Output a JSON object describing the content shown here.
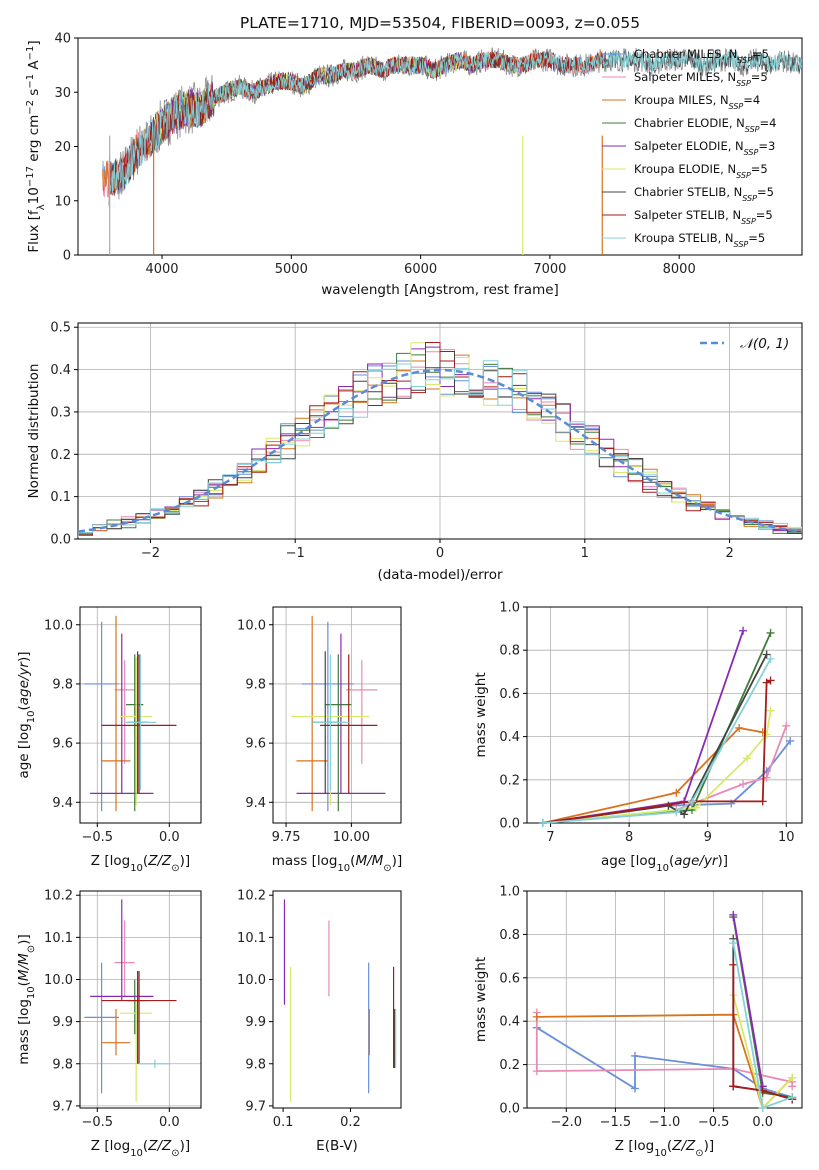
{
  "figure": {
    "title": "PLATE=1710, MJD=53504, FIBERID=0093, z=0.055"
  },
  "colors": {
    "Chabrier MILES": "#6a8fdb",
    "Salpeter MILES": "#e98ab6",
    "Kroupa MILES": "#d8731f",
    "Chabrier ELODIE": "#3f7d3a",
    "Salpeter ELODIE": "#8a2ab2",
    "Kroupa ELODIE": "#d8e86a",
    "Chabrier STELIB": "#444444",
    "Salpeter STELIB": "#a61b1b",
    "Kroupa STELIB": "#86d1d8"
  },
  "chart_data": [
    {
      "id": "spectrum",
      "type": "line",
      "title": "PLATE=1710, MJD=53504, FIBERID=0093, z=0.055",
      "xlabel": "wavelength [Angstrom, rest frame]",
      "ylabel": "Flux [f_λ 10^-17 erg cm^-2 s^-1 A^-1]",
      "xlim": [
        3350,
        8950
      ],
      "ylim": [
        0,
        40
      ],
      "xticks": [
        4000,
        5000,
        6000,
        7000,
        8000
      ],
      "yticks": [
        0,
        10,
        20,
        30,
        40
      ],
      "grid": false,
      "legend_position": "top-right",
      "observed": {
        "name": "data",
        "x": [
          3600,
          3700,
          3800,
          3900,
          4000,
          4100,
          4200,
          4300,
          4400,
          4500,
          4600,
          4700,
          4800,
          4900,
          5000,
          5100,
          5200,
          5300,
          5400,
          5500,
          5600,
          5700,
          5800,
          5900,
          6000,
          6100,
          6200,
          6300,
          6400,
          6500,
          6600,
          6700,
          6800,
          6900,
          7000,
          7100,
          7200,
          7300,
          7400,
          7500,
          7600,
          7700,
          7800,
          7900,
          8000,
          8100,
          8200,
          8300,
          8400,
          8500,
          8600,
          8700,
          8800,
          8900
        ],
        "y": [
          14,
          15,
          19,
          21,
          24,
          26,
          27,
          27,
          29,
          30,
          31,
          30,
          31,
          32,
          32,
          31,
          33,
          33,
          34,
          34,
          35,
          34,
          35,
          35,
          35,
          34,
          35,
          36,
          35,
          36,
          36,
          35,
          35,
          36,
          36,
          35,
          35,
          35,
          36,
          36,
          36,
          36,
          35,
          36,
          36,
          36,
          35,
          36,
          36,
          35,
          36,
          35,
          36,
          35
        ]
      },
      "models": [
        {
          "name": "Chabrier MILES",
          "label": "Chabrier MILES, N",
          "sub": "SSP",
          "suffix": "=5",
          "color": "#6a8fdb",
          "x_start": 3540,
          "x_end": 7410
        },
        {
          "name": "Salpeter MILES",
          "label": "Salpeter MILES, N",
          "sub": "SSP",
          "suffix": "=5",
          "color": "#e98ab6",
          "x_start": 3540,
          "x_end": 7410
        },
        {
          "name": "Kroupa MILES",
          "label": "Kroupa MILES, N",
          "sub": "SSP",
          "suffix": "=4",
          "color": "#d8731f",
          "x_start": 3540,
          "x_end": 7410
        },
        {
          "name": "Chabrier ELODIE",
          "label": "Chabrier ELODIE, N",
          "sub": "SSP",
          "suffix": "=4",
          "color": "#3f7d3a",
          "x_start": 3900,
          "x_end": 6800
        },
        {
          "name": "Salpeter ELODIE",
          "label": "Salpeter ELODIE, N",
          "sub": "SSP",
          "suffix": "=3",
          "color": "#8a2ab2",
          "x_start": 3900,
          "x_end": 6800
        },
        {
          "name": "Kroupa ELODIE",
          "label": "Kroupa ELODIE, N",
          "sub": "SSP",
          "suffix": "=5",
          "color": "#d8e86a",
          "x_start": 3900,
          "x_end": 6800
        },
        {
          "name": "Chabrier STELIB",
          "label": "Chabrier STELIB, N",
          "sub": "SSP",
          "suffix": "=5",
          "color": "#444444",
          "x_start": 3600,
          "x_end": 8950
        },
        {
          "name": "Salpeter STELIB",
          "label": "Salpeter STELIB, N",
          "sub": "SSP",
          "suffix": "=5",
          "color": "#a61b1b",
          "x_start": 3600,
          "x_end": 7410
        },
        {
          "name": "Kroupa STELIB",
          "label": "Kroupa STELIB, N",
          "sub": "SSP",
          "suffix": "=5",
          "color": "#86d1d8",
          "x_start": 3600,
          "x_end": 8950
        }
      ]
    },
    {
      "id": "residuals",
      "type": "line",
      "xlabel": "(data-model)/error",
      "ylabel": "Normed distribution",
      "xlim": [
        -2.5,
        2.5
      ],
      "ylim": [
        0,
        0.51
      ],
      "xticks": [
        -2,
        -1,
        0,
        1,
        2
      ],
      "yticks": [
        0.0,
        0.1,
        0.2,
        0.3,
        0.4,
        0.5
      ],
      "grid": true,
      "legend_position": "top-right",
      "reference": {
        "name": "N(0,1)",
        "mean": 0,
        "sigma": 1,
        "style": "dashed"
      },
      "bin_width": 0.1
    },
    {
      "id": "age_vs_Z",
      "type": "scatter",
      "xlabel": "Z [log10(Z/Z⊙)]",
      "ylabel": "age [log10(age/yr)]",
      "xlim": [
        -0.62,
        0.22
      ],
      "ylim": [
        9.33,
        10.06
      ],
      "xticks": [
        -0.5,
        0.0
      ],
      "yticks": [
        9.4,
        9.6,
        9.8,
        10.0
      ],
      "grid": true,
      "points": [
        {
          "model": "Chabrier MILES",
          "x": -0.47,
          "y": 9.8,
          "xerr": 0.12,
          "yerr": [
            0.43,
            0.21
          ]
        },
        {
          "model": "Salpeter MILES",
          "x": -0.31,
          "y": 9.78,
          "xerr": 0.07,
          "yerr": [
            0.25,
            0.1
          ]
        },
        {
          "model": "Kroupa MILES",
          "x": -0.37,
          "y": 9.54,
          "xerr": 0.1,
          "yerr": [
            0.17,
            0.49
          ]
        },
        {
          "model": "Chabrier ELODIE",
          "x": -0.24,
          "y": 9.73,
          "xerr": 0.06,
          "yerr": [
            0.36,
            0.17
          ]
        },
        {
          "model": "Salpeter ELODIE",
          "x": -0.33,
          "y": 9.43,
          "xerr": 0.22,
          "yerr": [
            0.0,
            0.54
          ]
        },
        {
          "model": "Kroupa ELODIE",
          "x": -0.23,
          "y": 9.69,
          "xerr": 0.11,
          "yerr": [
            0.3,
            0.2
          ]
        },
        {
          "model": "Chabrier STELIB",
          "x": -0.22,
          "y": 9.67,
          "xerr": 0.07,
          "yerr": [
            0.24,
            0.24
          ]
        },
        {
          "model": "Salpeter STELIB",
          "x": -0.21,
          "y": 9.66,
          "xerr": 0.26,
          "yerr": [
            0.23,
            0.24
          ]
        },
        {
          "model": "Kroupa STELIB",
          "x": -0.2,
          "y": 9.67,
          "xerr": 0.11,
          "yerr": [
            0.23,
            0.23
          ]
        }
      ]
    },
    {
      "id": "age_vs_mass",
      "type": "scatter",
      "xlabel": "mass [log10(M/M⊙)]",
      "ylabel": "",
      "xlim": [
        9.7,
        10.19
      ],
      "ylim": [
        9.33,
        10.06
      ],
      "xticks": [
        9.75,
        10.0
      ],
      "yticks": [
        9.4,
        9.6,
        9.8,
        10.0
      ],
      "grid": true,
      "points": [
        {
          "model": "Chabrier MILES",
          "x": 9.91,
          "y": 9.8,
          "xerr": 0.1,
          "yerr": [
            0.43,
            0.21
          ]
        },
        {
          "model": "Salpeter MILES",
          "x": 10.04,
          "y": 9.78,
          "xerr": 0.06,
          "yerr": [
            0.25,
            0.1
          ]
        },
        {
          "model": "Kroupa MILES",
          "x": 9.85,
          "y": 9.54,
          "xerr": 0.06,
          "yerr": [
            0.17,
            0.49
          ]
        },
        {
          "model": "Chabrier ELODIE",
          "x": 9.95,
          "y": 9.73,
          "xerr": 0.05,
          "yerr": [
            0.36,
            0.17
          ]
        },
        {
          "model": "Salpeter ELODIE",
          "x": 9.96,
          "y": 9.43,
          "xerr": 0.17,
          "yerr": [
            0.0,
            0.54
          ]
        },
        {
          "model": "Kroupa ELODIE",
          "x": 9.92,
          "y": 9.69,
          "xerr": 0.15,
          "yerr": [
            0.3,
            0.2
          ]
        },
        {
          "model": "Chabrier STELIB",
          "x": 9.9,
          "y": 9.67,
          "xerr": 0.05,
          "yerr": [
            0.24,
            0.24
          ]
        },
        {
          "model": "Salpeter STELIB",
          "x": 9.99,
          "y": 9.66,
          "xerr": 0.11,
          "yerr": [
            0.23,
            0.24
          ]
        },
        {
          "model": "Kroupa STELIB",
          "x": 9.92,
          "y": 9.67,
          "xerr": 0.07,
          "yerr": [
            0.23,
            0.23
          ]
        }
      ]
    },
    {
      "id": "weight_vs_age",
      "type": "line",
      "xlabel": "age [log10(age/yr)]",
      "ylabel": "mass weight",
      "xlim": [
        6.7,
        10.2
      ],
      "ylim": [
        0,
        1.0
      ],
      "xticks": [
        7,
        8,
        9,
        10
      ],
      "yticks": [
        0.0,
        0.2,
        0.4,
        0.6,
        0.8,
        1.0
      ],
      "grid": true,
      "series": [
        {
          "name": "Chabrier MILES",
          "x": [
            6.9,
            8.5,
            9.3,
            9.75,
            10.05
          ],
          "y": [
            0.0,
            0.08,
            0.09,
            0.24,
            0.38
          ]
        },
        {
          "name": "Salpeter MILES",
          "x": [
            6.9,
            8.6,
            9.45,
            9.75,
            10.0
          ],
          "y": [
            0.0,
            0.06,
            0.18,
            0.21,
            0.45
          ]
        },
        {
          "name": "Kroupa MILES",
          "x": [
            6.9,
            8.6,
            9.4,
            9.7
          ],
          "y": [
            0.0,
            0.14,
            0.44,
            0.42
          ]
        },
        {
          "name": "Chabrier ELODIE",
          "x": [
            6.9,
            8.8,
            9.8
          ],
          "y": [
            0.0,
            0.06,
            0.88
          ]
        },
        {
          "name": "Salpeter ELODIE",
          "x": [
            6.9,
            8.7,
            9.45
          ],
          "y": [
            0.0,
            0.1,
            0.89
          ]
        },
        {
          "name": "Kroupa ELODIE",
          "x": [
            6.9,
            8.85,
            9.5,
            9.75,
            9.8
          ],
          "y": [
            0.0,
            0.07,
            0.3,
            0.41,
            0.52
          ]
        },
        {
          "name": "Chabrier STELIB",
          "x": [
            6.9,
            8.5,
            8.7,
            9.75
          ],
          "y": [
            0.0,
            0.08,
            0.04,
            0.78
          ]
        },
        {
          "name": "Salpeter STELIB",
          "x": [
            6.9,
            8.8,
            9.7,
            9.75,
            9.8
          ],
          "y": [
            0.0,
            0.1,
            0.1,
            0.65,
            0.66
          ]
        },
        {
          "name": "Kroupa STELIB",
          "x": [
            6.9,
            8.6,
            8.8,
            9.8
          ],
          "y": [
            0.0,
            0.05,
            0.1,
            0.76
          ]
        }
      ]
    },
    {
      "id": "mass_vs_Z",
      "type": "scatter",
      "xlabel": "Z [log10(Z/Z⊙)]",
      "ylabel": "mass [log10(M/M⊙)]",
      "xlim": [
        -0.62,
        0.22
      ],
      "ylim": [
        9.695,
        10.21
      ],
      "xticks": [
        -0.5,
        0.0
      ],
      "yticks": [
        9.7,
        9.8,
        9.9,
        10.0,
        10.1,
        10.2
      ],
      "grid": true,
      "points": [
        {
          "model": "Chabrier MILES",
          "x": -0.47,
          "y": 9.91,
          "xerr": 0.12,
          "yerr": [
            0.18,
            0.13
          ]
        },
        {
          "model": "Salpeter MILES",
          "x": -0.31,
          "y": 10.04,
          "xerr": 0.07,
          "yerr": [
            0.08,
            0.1
          ]
        },
        {
          "model": "Kroupa MILES",
          "x": -0.37,
          "y": 9.85,
          "xerr": 0.1,
          "yerr": [
            0.03,
            0.08
          ]
        },
        {
          "model": "Chabrier ELODIE",
          "x": -0.24,
          "y": 9.95,
          "xerr": 0.06,
          "yerr": [
            0.08,
            0.05
          ]
        },
        {
          "model": "Salpeter ELODIE",
          "x": -0.33,
          "y": 9.96,
          "xerr": 0.22,
          "yerr": [
            0.01,
            0.23
          ]
        },
        {
          "model": "Kroupa ELODIE",
          "x": -0.23,
          "y": 9.92,
          "xerr": 0.11,
          "yerr": [
            0.21,
            0.03
          ]
        },
        {
          "model": "Chabrier STELIB",
          "x": -0.22,
          "y": 9.95,
          "xerr": 0.07,
          "yerr": [
            0.15,
            0.07
          ]
        },
        {
          "model": "Salpeter STELIB",
          "x": -0.21,
          "y": 9.95,
          "xerr": 0.26,
          "yerr": [
            0.15,
            0.07
          ]
        },
        {
          "model": "Kroupa STELIB",
          "x": -0.1,
          "y": 9.8,
          "xerr": 0.11,
          "yerr": [
            0.01,
            0.01
          ]
        }
      ]
    },
    {
      "id": "mass_vs_ebv",
      "type": "scatter",
      "xlabel": "E(B-V)",
      "ylabel": "",
      "xlim": [
        0.085,
        0.275
      ],
      "ylim": [
        9.695,
        10.21
      ],
      "xticks": [
        0.1,
        0.2
      ],
      "yticks": [
        9.7,
        9.8,
        9.9,
        10.0,
        10.1,
        10.2
      ],
      "grid": false,
      "points": [
        {
          "model": "Chabrier MILES",
          "x": 0.227,
          "y": 9.91,
          "yerr": [
            0.18,
            0.13
          ]
        },
        {
          "model": "Salpeter MILES",
          "x": 0.168,
          "y": 10.04,
          "yerr": [
            0.08,
            0.1
          ]
        },
        {
          "model": "Kroupa MILES",
          "x": 0.228,
          "y": 9.85,
          "yerr": [
            0.03,
            0.08
          ]
        },
        {
          "model": "Chabrier ELODIE",
          "x": 0.265,
          "y": 9.86,
          "yerr": [
            0.07,
            0.07
          ]
        },
        {
          "model": "Salpeter ELODIE",
          "x": 0.102,
          "y": 10.07,
          "yerr": [
            0.13,
            0.12
          ]
        },
        {
          "model": "Kroupa ELODIE",
          "x": 0.111,
          "y": 9.87,
          "yerr": [
            0.16,
            0.16
          ]
        },
        {
          "model": "Chabrier STELIB",
          "x": 0.266,
          "y": 9.86,
          "yerr": [
            0.07,
            0.07
          ]
        },
        {
          "model": "Salpeter STELIB",
          "x": 0.264,
          "y": 9.92,
          "yerr": [
            0.13,
            0.11
          ]
        },
        {
          "model": "Kroupa STELIB",
          "x": 0.267,
          "y": 9.86,
          "yerr": [
            0.07,
            0.07
          ]
        }
      ]
    },
    {
      "id": "weight_vs_Z",
      "type": "line",
      "xlabel": "Z [log10(Z/Z⊙)]",
      "ylabel": "mass weight",
      "xlim": [
        -2.4,
        0.4
      ],
      "ylim": [
        0,
        1.0
      ],
      "xticks": [
        -2.0,
        -1.5,
        -1.0,
        -0.5,
        0.0
      ],
      "yticks": [
        0.0,
        0.2,
        0.4,
        0.6,
        0.8,
        1.0
      ],
      "grid": true,
      "series": [
        {
          "name": "Chabrier MILES",
          "x": [
            -2.3,
            -1.3,
            -1.3,
            -0.3,
            0.0,
            0.3
          ],
          "y": [
            0.37,
            0.09,
            0.24,
            0.18,
            0.09,
            0.05
          ]
        },
        {
          "name": "Salpeter MILES",
          "x": [
            -2.3,
            -2.3,
            -0.3,
            0.3,
            0.3
          ],
          "y": [
            0.44,
            0.17,
            0.18,
            0.12,
            0.1
          ]
        },
        {
          "name": "Kroupa MILES",
          "x": [
            -2.3,
            -0.3,
            0.0,
            0.3
          ],
          "y": [
            0.42,
            0.43,
            0.0,
            0.14
          ]
        },
        {
          "name": "Chabrier ELODIE",
          "x": [
            -0.3,
            0.0,
            0.3
          ],
          "y": [
            0.88,
            0.07,
            0.05
          ]
        },
        {
          "name": "Salpeter ELODIE",
          "x": [
            -0.3,
            0.0
          ],
          "y": [
            0.89,
            0.1
          ]
        },
        {
          "name": "Kroupa ELODIE",
          "x": [
            -0.3,
            0.0,
            0.3
          ],
          "y": [
            0.52,
            0.0,
            0.14
          ]
        },
        {
          "name": "Chabrier STELIB",
          "x": [
            -0.3,
            -0.3,
            0.0,
            0.3
          ],
          "y": [
            0.78,
            0.1,
            0.08,
            0.04
          ]
        },
        {
          "name": "Salpeter STELIB",
          "x": [
            -0.3,
            -0.3,
            0.0,
            0.3
          ],
          "y": [
            0.66,
            0.1,
            0.08,
            0.04
          ]
        },
        {
          "name": "Kroupa STELIB",
          "x": [
            -0.3,
            0.0,
            0.3
          ],
          "y": [
            0.76,
            0.0,
            0.05
          ]
        }
      ]
    }
  ]
}
